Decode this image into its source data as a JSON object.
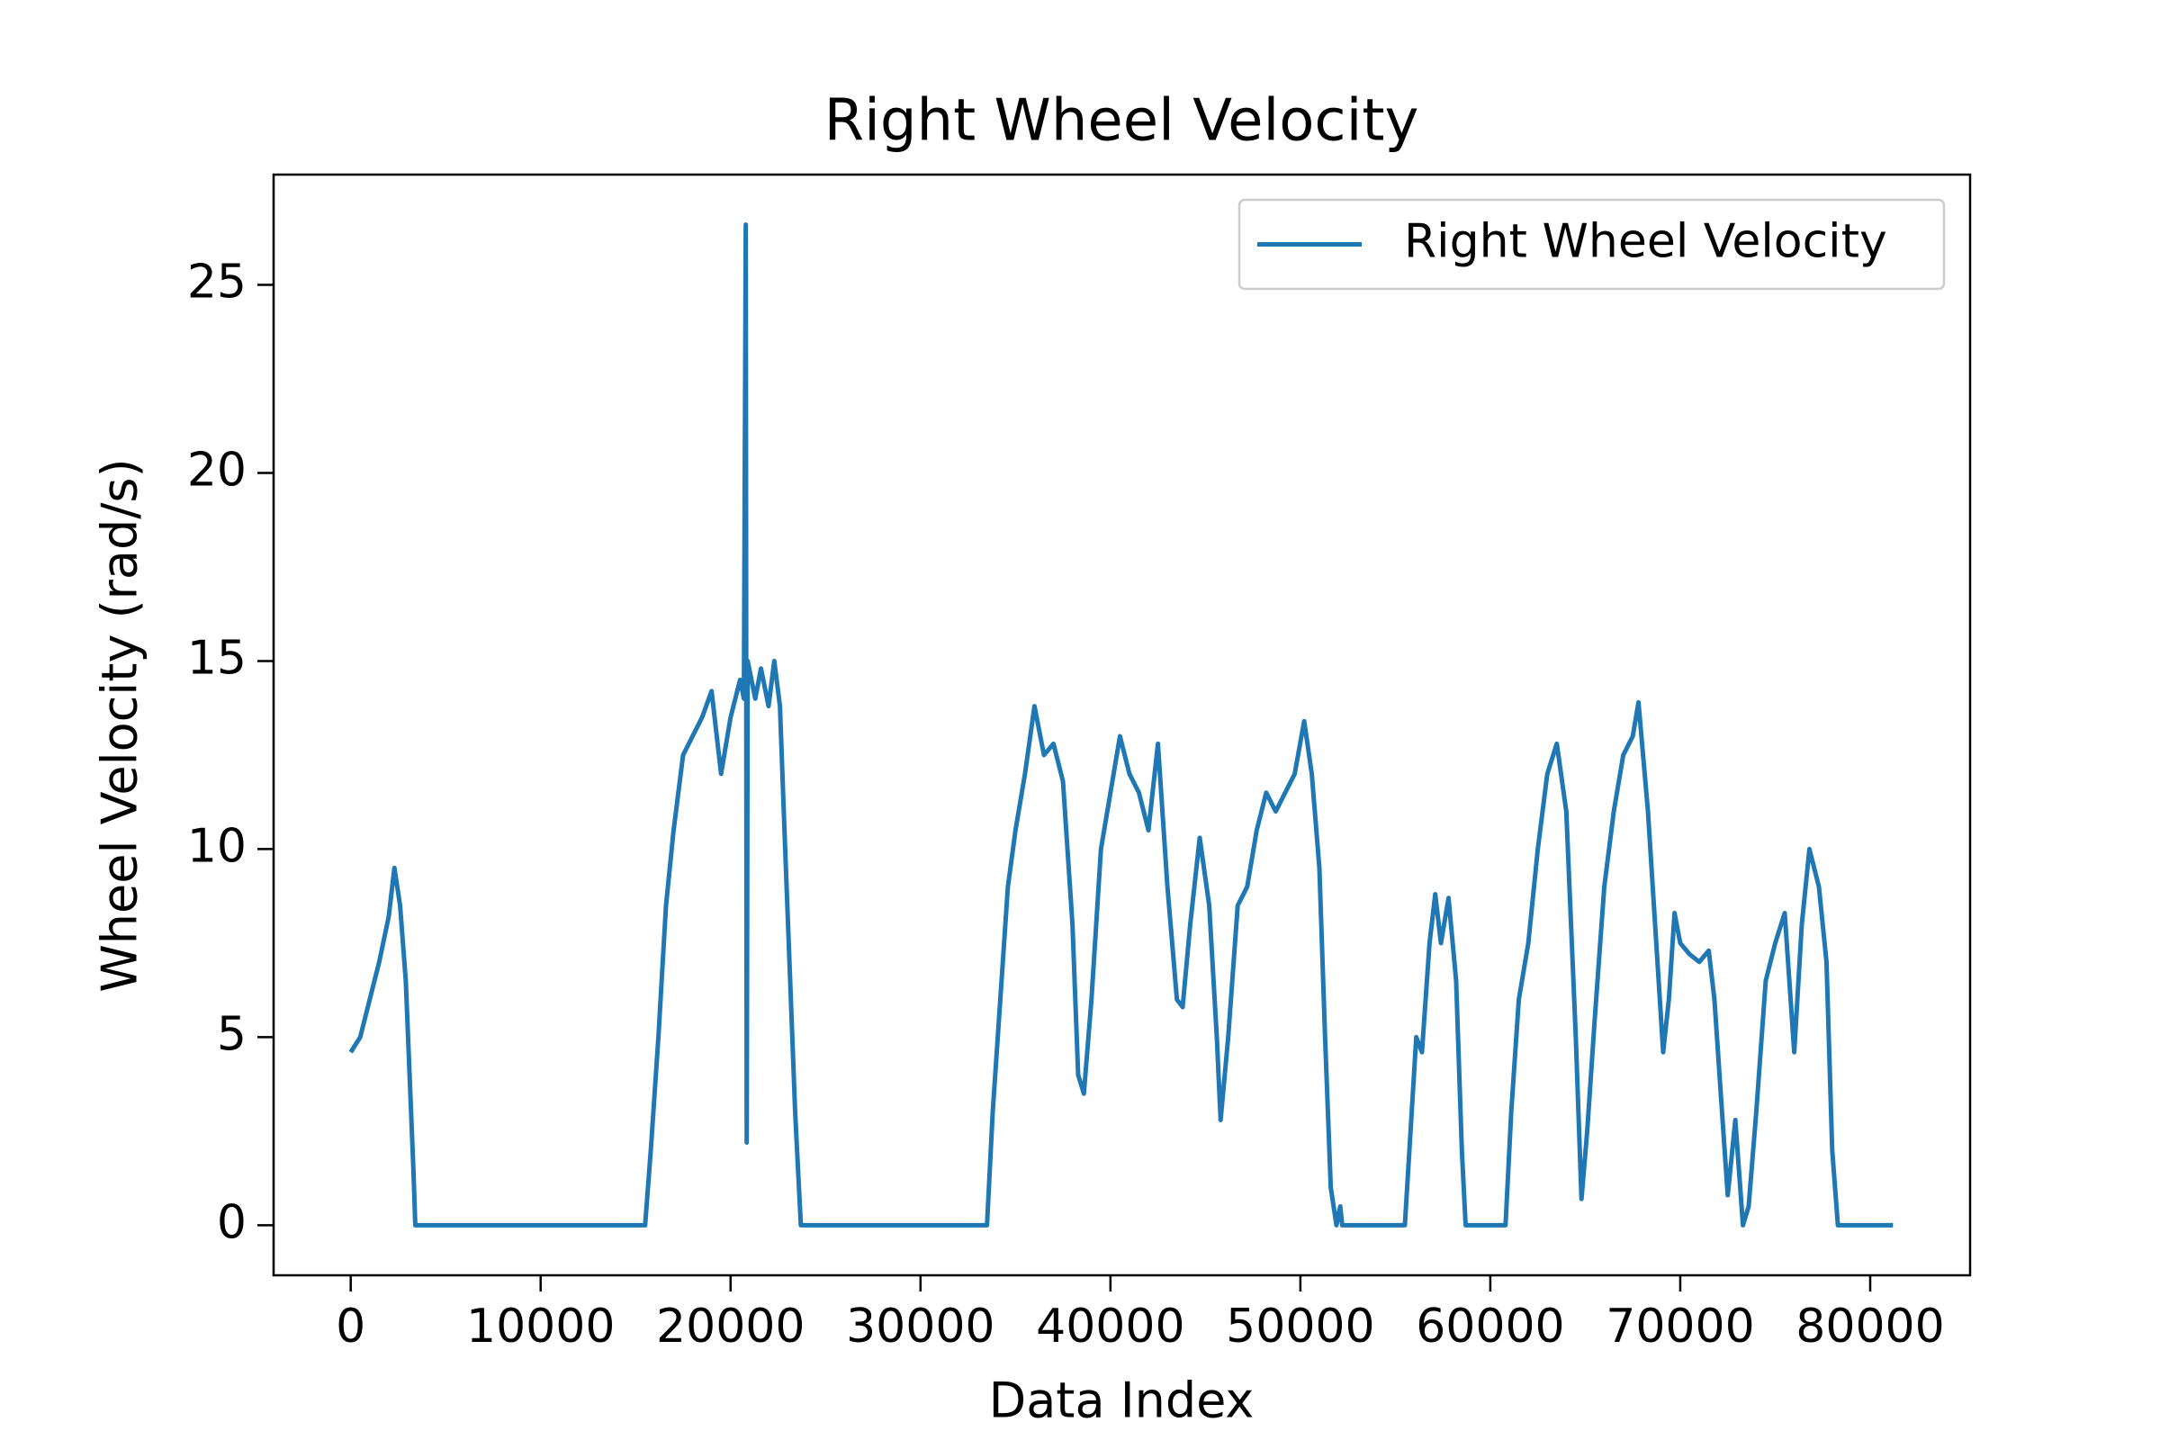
{
  "chart_data": {
    "type": "line",
    "title": "Right Wheel Velocity",
    "x_label": "Data Index",
    "y_label": "Wheel Velocity (rad/s)",
    "legend": "upper right",
    "grid": false,
    "xlim": [
      -4060,
      85260
    ],
    "ylim": [
      -1.33,
      27.93
    ],
    "xticks": [
      0,
      10000,
      20000,
      30000,
      40000,
      50000,
      60000,
      70000,
      80000
    ],
    "yticks": [
      0,
      5,
      10,
      15,
      20,
      25
    ],
    "x": [
      0,
      500,
      1000,
      1500,
      2000,
      2300,
      2600,
      2900,
      3100,
      3300,
      3400,
      15500,
      15800,
      16200,
      16600,
      17000,
      17500,
      18000,
      18500,
      19000,
      19500,
      20000,
      20500,
      20700,
      20800,
      20850,
      20900,
      21300,
      21600,
      22000,
      22300,
      22600,
      22800,
      23100,
      23400,
      23700,
      33500,
      33800,
      34200,
      34600,
      35000,
      35500,
      36000,
      36500,
      37000,
      37500,
      38000,
      38300,
      38600,
      39000,
      39500,
      40000,
      40500,
      41000,
      41500,
      42000,
      42500,
      43000,
      43500,
      43800,
      44200,
      44700,
      45200,
      45600,
      45800,
      46200,
      46700,
      47200,
      47700,
      48200,
      48700,
      49200,
      49700,
      50200,
      50600,
      51000,
      51300,
      51600,
      51900,
      52100,
      52200,
      55500,
      55800,
      56100,
      56400,
      56800,
      57100,
      57400,
      57800,
      58200,
      58500,
      58700,
      60800,
      61100,
      61500,
      62000,
      62500,
      63000,
      63500,
      64000,
      64500,
      64800,
      65100,
      65500,
      66000,
      66500,
      67000,
      67500,
      67800,
      68300,
      68800,
      69100,
      69400,
      69700,
      70000,
      70500,
      71000,
      71500,
      71800,
      72200,
      72500,
      72900,
      73300,
      73600,
      74000,
      74500,
      75000,
      75500,
      76000,
      76400,
      76800,
      77300,
      77700,
      78000,
      78300,
      81200
    ],
    "series": [
      {
        "name": "Right Wheel Velocity",
        "color": "#1f77b4",
        "values": [
          4.6,
          5.0,
          6.0,
          7.0,
          8.2,
          9.5,
          8.5,
          6.5,
          4,
          1.5,
          0,
          0,
          2,
          5,
          8.5,
          10.5,
          12.5,
          13,
          13.5,
          14.2,
          12,
          13.5,
          14.5,
          14,
          26.6,
          2.2,
          15,
          14,
          14.8,
          13.8,
          15,
          13.8,
          11,
          7,
          3,
          0,
          0,
          3,
          6,
          9,
          10.5,
          12,
          13.8,
          12.5,
          12.8,
          11.8,
          8,
          4,
          3.5,
          6,
          10,
          11.5,
          13,
          12,
          11.5,
          10.5,
          12.8,
          9,
          6,
          5.8,
          8,
          10.3,
          8.5,
          5,
          2.8,
          5,
          8.5,
          9,
          10.5,
          11.5,
          11,
          11.5,
          12,
          13.4,
          12,
          9.5,
          5,
          1,
          0,
          0.5,
          0,
          0,
          2.5,
          5,
          4.6,
          7.5,
          8.8,
          7.5,
          8.7,
          6.5,
          2,
          0,
          0,
          3,
          6,
          7.5,
          10,
          12,
          12.8,
          11,
          5,
          0.7,
          2.5,
          5.5,
          9,
          11,
          12.5,
          13,
          13.9,
          11,
          7,
          4.6,
          6,
          8.3,
          7.5,
          7.2,
          7,
          7.3,
          6,
          3,
          0.8,
          2.8,
          0,
          0.5,
          3,
          6.5,
          7.5,
          8.3,
          4.6,
          8,
          10,
          9,
          7,
          2,
          0,
          0
        ]
      }
    ]
  }
}
